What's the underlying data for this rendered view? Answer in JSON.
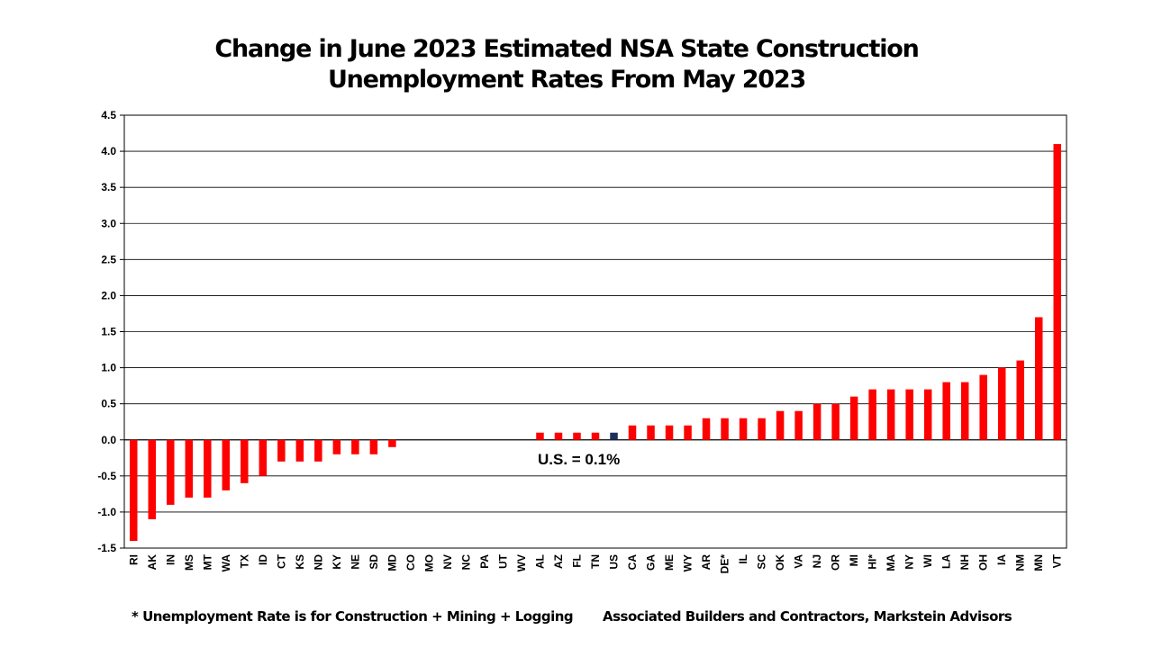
{
  "chart_data": {
    "type": "bar",
    "title_lines": [
      "Change in June 2023 Estimated NSA State Construction",
      "Unemployment Rates From May 2023"
    ],
    "categories": [
      "RI",
      "AK",
      "IN",
      "MS",
      "MT",
      "WA",
      "TX",
      "ID",
      "CT",
      "KS",
      "ND",
      "KY",
      "NE",
      "SD",
      "MD",
      "CO",
      "MO",
      "NV",
      "NC",
      "PA",
      "UT",
      "WV",
      "AL",
      "AZ",
      "FL",
      "TN",
      "US",
      "CA",
      "GA",
      "ME",
      "WY",
      "AR",
      "DE*",
      "IL",
      "SC",
      "OK",
      "VA",
      "NJ",
      "OR",
      "MI",
      "HI*",
      "MA",
      "NY",
      "WI",
      "LA",
      "NH",
      "OH",
      "IA",
      "NM",
      "MN",
      "VT"
    ],
    "values": [
      -1.4,
      -1.1,
      -0.9,
      -0.8,
      -0.8,
      -0.7,
      -0.6,
      -0.5,
      -0.3,
      -0.3,
      -0.3,
      -0.2,
      -0.2,
      -0.2,
      -0.1,
      0,
      0,
      0,
      0,
      0,
      0,
      0,
      0.1,
      0.1,
      0.1,
      0.1,
      0.1,
      0.2,
      0.2,
      0.2,
      0.2,
      0.3,
      0.3,
      0.3,
      0.3,
      0.4,
      0.4,
      0.5,
      0.5,
      0.6,
      0.7,
      0.7,
      0.7,
      0.7,
      0.8,
      0.8,
      0.9,
      1.0,
      1.1,
      1.7,
      4.1
    ],
    "ylim": [
      -1.5,
      4.5
    ],
    "yticks": [
      "4.5",
      "4.0",
      "3.5",
      "3.0",
      "2.5",
      "2.0",
      "1.5",
      "1.0",
      "0.5",
      "0.0",
      "-0.5",
      "-1.0",
      "-1.5"
    ],
    "grid": true,
    "colors": {
      "bar": "#ff0000",
      "highlight": "#1f2f5c",
      "highlight_category": "US"
    },
    "annotation": "U.S. = 0.1%"
  },
  "footer": {
    "note": "* Unemployment Rate is for Construction + Mining + Logging",
    "source": "Associated Builders and Contractors, Markstein Advisors"
  }
}
